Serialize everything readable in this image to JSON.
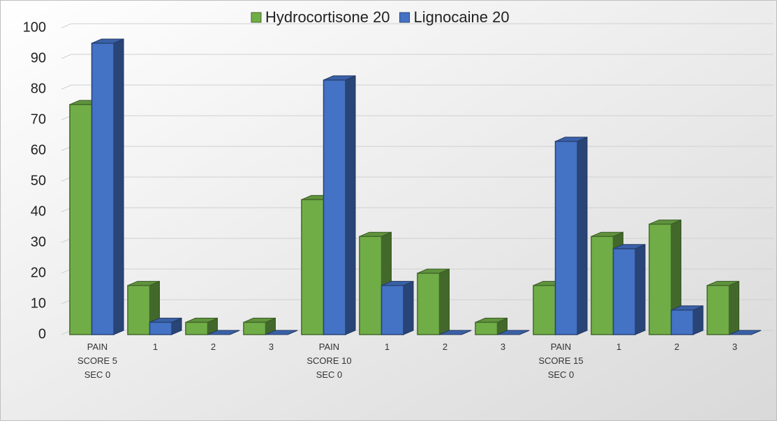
{
  "chart_data": {
    "type": "bar3d",
    "categories": [
      "PAIN\nSCORE 5\nSEC 0",
      "1",
      "2",
      "3",
      "PAIN\nSCORE 10\nSEC 0",
      "1",
      "2",
      "3",
      "PAIN\nSCORE 15\nSEC 0",
      "1",
      "2",
      "3"
    ],
    "series": [
      {
        "name": "Hydrocortisone 20",
        "color": "#70ad47",
        "values": [
          75,
          16,
          4,
          4,
          44,
          32,
          20,
          4,
          16,
          32,
          36,
          16
        ]
      },
      {
        "name": "Lignocaine 20",
        "color": "#4472c4",
        "values": [
          95,
          4,
          0,
          0,
          83,
          16,
          0,
          0,
          63,
          28,
          8,
          0
        ]
      }
    ],
    "ylim": [
      0,
      100
    ],
    "yticks": [
      0,
      10,
      20,
      30,
      40,
      50,
      60,
      70,
      80,
      90,
      100
    ],
    "grid": true,
    "legend": "top"
  }
}
